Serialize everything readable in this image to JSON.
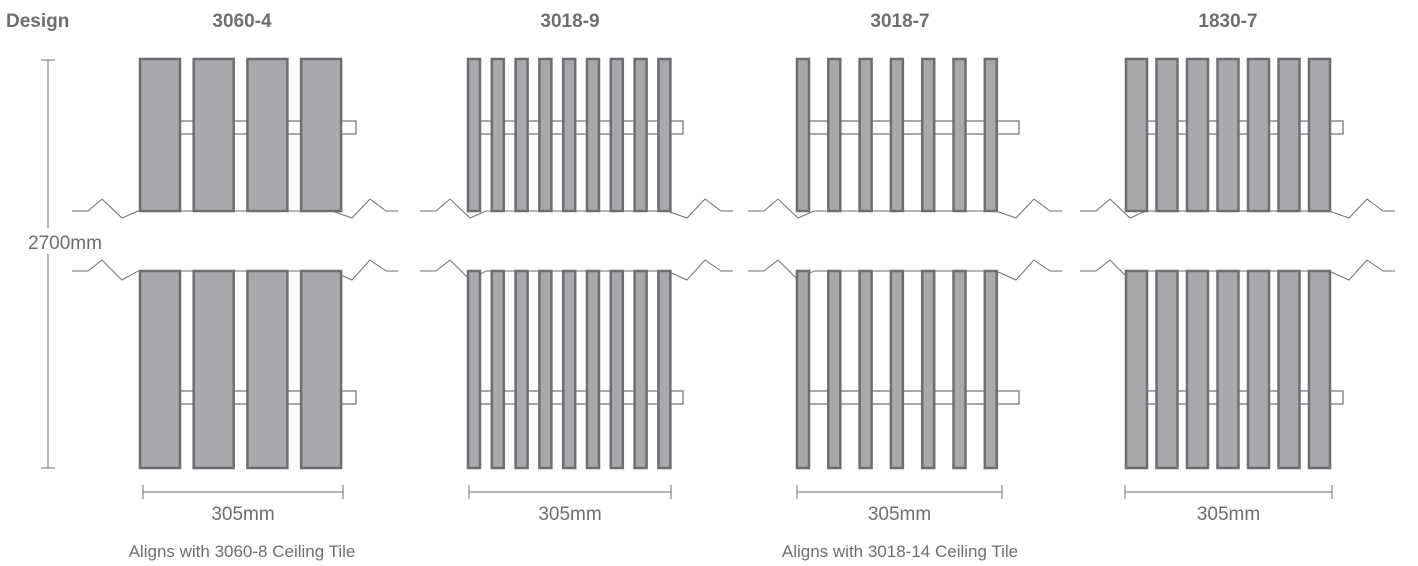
{
  "header_label": "Design",
  "total_height_label": "2700mm",
  "designs": [
    {
      "name": "3060-4",
      "slat_count": 4,
      "width_label": "305mm"
    },
    {
      "name": "3018-9",
      "slat_count": 9,
      "width_label": "305mm"
    },
    {
      "name": "3018-7",
      "slat_count": 7,
      "width_label": "305mm"
    },
    {
      "name": "1830-7",
      "slat_count": 7,
      "width_label": "305mm"
    }
  ],
  "notes": [
    "Aligns with 3060-8 Ceiling Tile",
    "Aligns with 3018-14 Ceiling Tile"
  ],
  "colors": {
    "slat_fill": "#a7a9ac",
    "stroke": "#6d6e71",
    "text": "#6d6e71"
  }
}
